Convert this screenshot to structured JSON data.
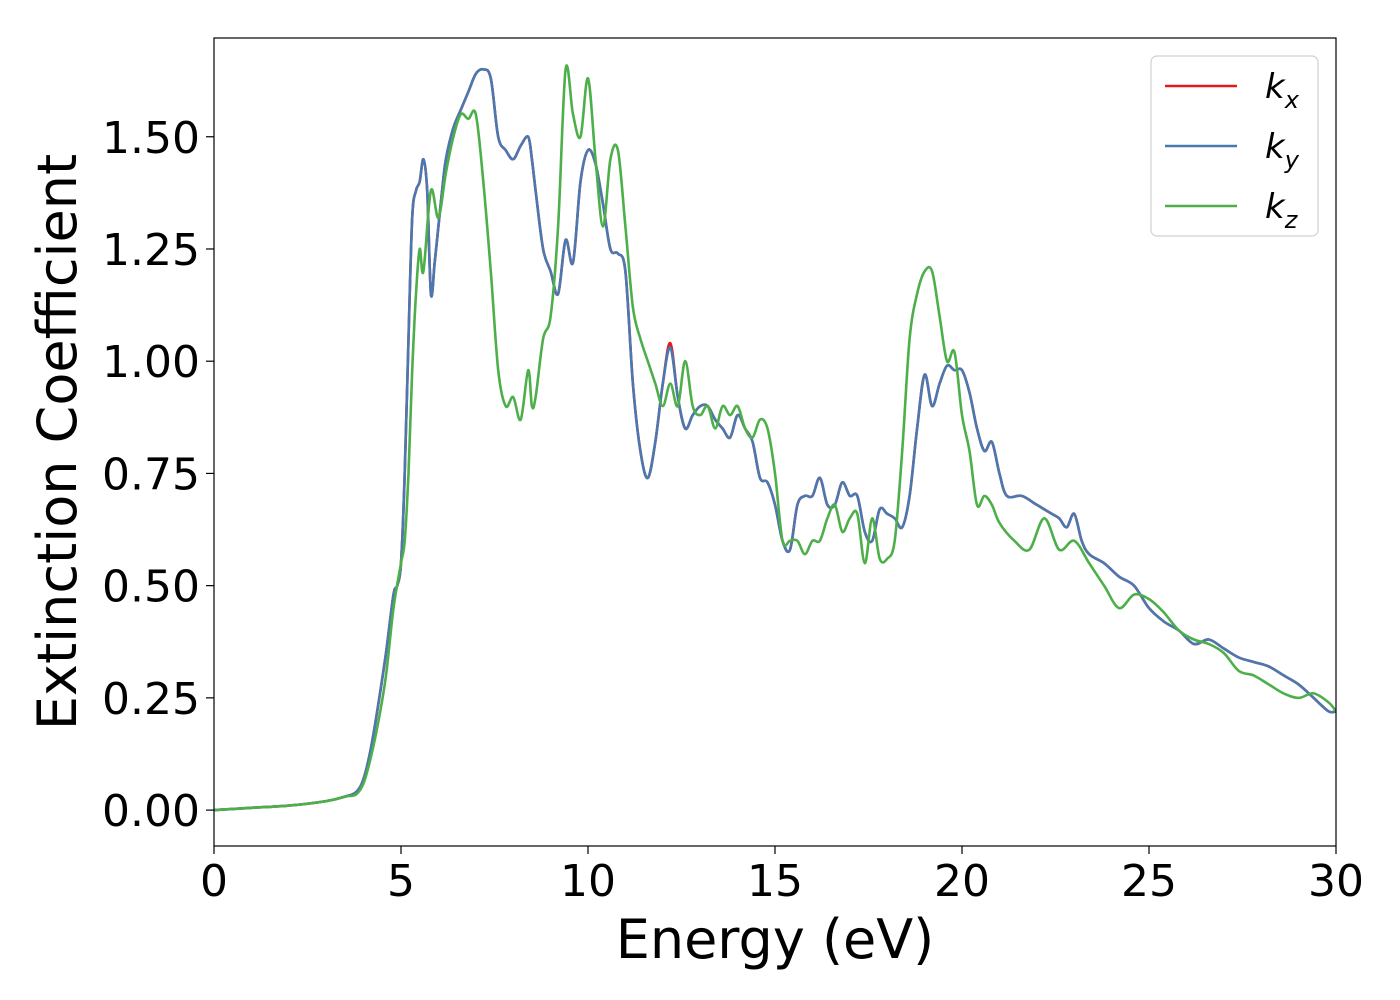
{
  "chart_data": {
    "type": "line",
    "xlabel": "Energy (eV)",
    "ylabel": "Extinction Coefficient",
    "xlim": [
      0,
      30
    ],
    "ylim": [
      -0.08,
      1.72
    ],
    "x_ticks": [
      0,
      5,
      10,
      15,
      20,
      25,
      30
    ],
    "x_tick_labels": [
      "0",
      "5",
      "10",
      "15",
      "20",
      "25",
      "30"
    ],
    "y_ticks": [
      0,
      0.25,
      0.5,
      0.75,
      1.0,
      1.25,
      1.5
    ],
    "y_tick_labels": [
      "0.00",
      "0.25",
      "0.50",
      "0.75",
      "1.00",
      "1.25",
      "1.50"
    ],
    "grid": false,
    "legend_position": "top-right",
    "series": [
      {
        "name": "k_x",
        "legend_base": "k",
        "legend_sub": "x",
        "color": "#e41a1c",
        "x": [
          0,
          1,
          2,
          3,
          3.5,
          3.8,
          4.0,
          4.2,
          4.4,
          4.6,
          4.8,
          4.9,
          5.0,
          5.1,
          5.2,
          5.3,
          5.4,
          5.5,
          5.6,
          5.7,
          5.8,
          5.9,
          6.0,
          6.1,
          6.2,
          6.4,
          6.6,
          6.8,
          7.0,
          7.2,
          7.4,
          7.6,
          7.8,
          8.0,
          8.2,
          8.4,
          8.5,
          8.6,
          8.8,
          9.0,
          9.2,
          9.4,
          9.6,
          9.8,
          10.0,
          10.2,
          10.4,
          10.6,
          10.8,
          11.0,
          11.2,
          11.4,
          11.6,
          11.8,
          12.0,
          12.2,
          12.4,
          12.6,
          12.8,
          13.0,
          13.2,
          13.4,
          13.6,
          13.8,
          14.0,
          14.2,
          14.4,
          14.6,
          14.8,
          15.0,
          15.2,
          15.4,
          15.6,
          15.8,
          16.0,
          16.2,
          16.4,
          16.6,
          16.8,
          17.0,
          17.2,
          17.4,
          17.6,
          17.8,
          18.0,
          18.2,
          18.4,
          18.6,
          18.8,
          19.0,
          19.2,
          19.4,
          19.6,
          19.8,
          20.0,
          20.2,
          20.4,
          20.6,
          20.8,
          21.0,
          21.2,
          21.6,
          22.0,
          22.4,
          22.6,
          22.8,
          23.0,
          23.2,
          23.4,
          23.8,
          24.2,
          24.6,
          25.0,
          25.4,
          25.8,
          26.2,
          26.6,
          27.0,
          27.4,
          27.8,
          28.2,
          28.6,
          29.0,
          29.4,
          29.8,
          30.0
        ],
        "values": [
          0.0,
          0.005,
          0.01,
          0.02,
          0.03,
          0.04,
          0.07,
          0.14,
          0.24,
          0.35,
          0.48,
          0.5,
          0.55,
          0.75,
          1.05,
          1.32,
          1.38,
          1.4,
          1.45,
          1.38,
          1.15,
          1.22,
          1.3,
          1.38,
          1.45,
          1.52,
          1.56,
          1.6,
          1.64,
          1.65,
          1.63,
          1.5,
          1.47,
          1.45,
          1.48,
          1.5,
          1.45,
          1.38,
          1.25,
          1.2,
          1.15,
          1.27,
          1.22,
          1.4,
          1.47,
          1.44,
          1.35,
          1.25,
          1.24,
          1.2,
          0.95,
          0.8,
          0.74,
          0.82,
          0.95,
          1.04,
          0.92,
          0.85,
          0.88,
          0.9,
          0.9,
          0.87,
          0.85,
          0.83,
          0.88,
          0.85,
          0.82,
          0.74,
          0.73,
          0.68,
          0.6,
          0.58,
          0.68,
          0.7,
          0.7,
          0.74,
          0.68,
          0.68,
          0.73,
          0.7,
          0.7,
          0.62,
          0.6,
          0.67,
          0.66,
          0.65,
          0.63,
          0.7,
          0.85,
          0.97,
          0.9,
          0.95,
          0.99,
          0.98,
          0.98,
          0.93,
          0.85,
          0.8,
          0.82,
          0.75,
          0.7,
          0.7,
          0.68,
          0.66,
          0.65,
          0.63,
          0.66,
          0.6,
          0.57,
          0.55,
          0.52,
          0.5,
          0.45,
          0.42,
          0.4,
          0.37,
          0.38,
          0.36,
          0.34,
          0.33,
          0.32,
          0.3,
          0.28,
          0.25,
          0.22,
          0.22
        ]
      },
      {
        "name": "k_y",
        "legend_base": "k",
        "legend_sub": "y",
        "color": "#4a78b0",
        "x": [
          0,
          1,
          2,
          3,
          3.5,
          3.8,
          4.0,
          4.2,
          4.4,
          4.6,
          4.8,
          4.9,
          5.0,
          5.1,
          5.2,
          5.3,
          5.4,
          5.5,
          5.6,
          5.7,
          5.8,
          5.9,
          6.0,
          6.1,
          6.2,
          6.4,
          6.6,
          6.8,
          7.0,
          7.2,
          7.4,
          7.6,
          7.8,
          8.0,
          8.2,
          8.4,
          8.5,
          8.6,
          8.8,
          9.0,
          9.2,
          9.4,
          9.6,
          9.8,
          10.0,
          10.2,
          10.4,
          10.6,
          10.8,
          11.0,
          11.2,
          11.4,
          11.6,
          11.8,
          12.0,
          12.2,
          12.4,
          12.6,
          12.8,
          13.0,
          13.2,
          13.4,
          13.6,
          13.8,
          14.0,
          14.2,
          14.4,
          14.6,
          14.8,
          15.0,
          15.2,
          15.4,
          15.6,
          15.8,
          16.0,
          16.2,
          16.4,
          16.6,
          16.8,
          17.0,
          17.2,
          17.4,
          17.6,
          17.8,
          18.0,
          18.2,
          18.4,
          18.6,
          18.8,
          19.0,
          19.2,
          19.4,
          19.6,
          19.8,
          20.0,
          20.2,
          20.4,
          20.6,
          20.8,
          21.0,
          21.2,
          21.6,
          22.0,
          22.4,
          22.6,
          22.8,
          23.0,
          23.2,
          23.4,
          23.8,
          24.2,
          24.6,
          25.0,
          25.4,
          25.8,
          26.2,
          26.6,
          27.0,
          27.4,
          27.8,
          28.2,
          28.6,
          29.0,
          29.4,
          29.8,
          30.0
        ],
        "values": [
          0.0,
          0.005,
          0.01,
          0.02,
          0.03,
          0.04,
          0.07,
          0.14,
          0.24,
          0.35,
          0.48,
          0.5,
          0.55,
          0.75,
          1.05,
          1.32,
          1.38,
          1.4,
          1.45,
          1.38,
          1.15,
          1.22,
          1.3,
          1.38,
          1.45,
          1.52,
          1.56,
          1.6,
          1.64,
          1.65,
          1.63,
          1.5,
          1.47,
          1.45,
          1.48,
          1.5,
          1.45,
          1.38,
          1.25,
          1.2,
          1.15,
          1.27,
          1.22,
          1.4,
          1.47,
          1.44,
          1.35,
          1.25,
          1.24,
          1.2,
          0.95,
          0.8,
          0.74,
          0.82,
          0.95,
          1.03,
          0.92,
          0.85,
          0.88,
          0.9,
          0.9,
          0.87,
          0.85,
          0.83,
          0.88,
          0.85,
          0.82,
          0.74,
          0.73,
          0.68,
          0.6,
          0.58,
          0.68,
          0.7,
          0.7,
          0.74,
          0.68,
          0.68,
          0.73,
          0.7,
          0.7,
          0.62,
          0.6,
          0.67,
          0.66,
          0.65,
          0.63,
          0.7,
          0.85,
          0.97,
          0.9,
          0.95,
          0.99,
          0.98,
          0.98,
          0.93,
          0.85,
          0.8,
          0.82,
          0.75,
          0.7,
          0.7,
          0.68,
          0.66,
          0.65,
          0.63,
          0.66,
          0.6,
          0.57,
          0.55,
          0.52,
          0.5,
          0.45,
          0.42,
          0.4,
          0.37,
          0.38,
          0.36,
          0.34,
          0.33,
          0.32,
          0.3,
          0.28,
          0.25,
          0.22,
          0.22
        ]
      },
      {
        "name": "k_z",
        "legend_base": "k",
        "legend_sub": "z",
        "color": "#4daf4a",
        "x": [
          0,
          1,
          2,
          3,
          3.5,
          3.8,
          4.0,
          4.2,
          4.4,
          4.6,
          4.8,
          5.0,
          5.1,
          5.2,
          5.3,
          5.4,
          5.5,
          5.6,
          5.8,
          6.0,
          6.2,
          6.4,
          6.6,
          6.8,
          7.0,
          7.2,
          7.4,
          7.6,
          7.8,
          8.0,
          8.2,
          8.4,
          8.5,
          8.6,
          8.8,
          9.0,
          9.2,
          9.4,
          9.6,
          9.8,
          10.0,
          10.2,
          10.4,
          10.6,
          10.8,
          11.0,
          11.2,
          11.4,
          11.6,
          11.8,
          12.0,
          12.2,
          12.4,
          12.6,
          12.8,
          13.0,
          13.2,
          13.4,
          13.6,
          13.8,
          14.0,
          14.2,
          14.4,
          14.6,
          14.8,
          15.0,
          15.2,
          15.4,
          15.6,
          15.8,
          16.0,
          16.2,
          16.4,
          16.6,
          16.8,
          17.0,
          17.2,
          17.4,
          17.6,
          17.8,
          18.0,
          18.2,
          18.4,
          18.6,
          18.8,
          19.0,
          19.2,
          19.4,
          19.6,
          19.8,
          20.0,
          20.2,
          20.4,
          20.6,
          20.8,
          21.0,
          21.4,
          21.8,
          22.2,
          22.6,
          23.0,
          23.4,
          23.8,
          24.2,
          24.6,
          25.0,
          25.4,
          25.8,
          26.2,
          26.6,
          27.0,
          27.4,
          27.8,
          28.2,
          28.6,
          29.0,
          29.4,
          29.8,
          30.0
        ],
        "values": [
          0.0,
          0.005,
          0.01,
          0.02,
          0.03,
          0.035,
          0.06,
          0.12,
          0.2,
          0.3,
          0.45,
          0.55,
          0.6,
          0.75,
          0.98,
          1.15,
          1.25,
          1.2,
          1.38,
          1.32,
          1.42,
          1.5,
          1.55,
          1.54,
          1.55,
          1.4,
          1.2,
          0.98,
          0.9,
          0.92,
          0.87,
          0.98,
          0.9,
          0.92,
          1.05,
          1.1,
          1.3,
          1.65,
          1.55,
          1.5,
          1.63,
          1.45,
          1.3,
          1.45,
          1.47,
          1.3,
          1.12,
          1.05,
          1.0,
          0.95,
          0.9,
          0.95,
          0.9,
          1.0,
          0.9,
          0.88,
          0.9,
          0.85,
          0.9,
          0.88,
          0.9,
          0.85,
          0.83,
          0.87,
          0.85,
          0.75,
          0.6,
          0.6,
          0.6,
          0.57,
          0.6,
          0.6,
          0.65,
          0.68,
          0.62,
          0.65,
          0.66,
          0.55,
          0.65,
          0.56,
          0.56,
          0.6,
          0.8,
          1.05,
          1.15,
          1.2,
          1.2,
          1.1,
          1.0,
          1.02,
          0.88,
          0.8,
          0.68,
          0.7,
          0.68,
          0.64,
          0.6,
          0.58,
          0.65,
          0.58,
          0.6,
          0.55,
          0.5,
          0.45,
          0.48,
          0.47,
          0.44,
          0.4,
          0.38,
          0.37,
          0.35,
          0.31,
          0.3,
          0.28,
          0.26,
          0.25,
          0.26,
          0.24,
          0.22
        ]
      }
    ]
  }
}
